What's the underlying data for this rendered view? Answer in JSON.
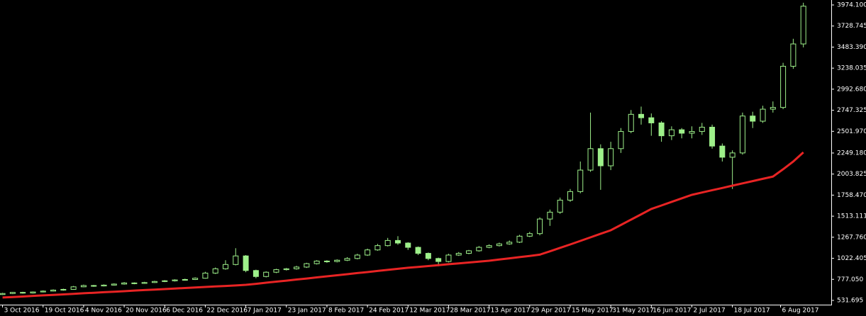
{
  "chart_data": {
    "type": "candlestick",
    "x": [
      "3 Oct 2016",
      "7 Oct 2016",
      "11 Oct 2016",
      "15 Oct 2016",
      "19 Oct 2016",
      "23 Oct 2016",
      "27 Oct 2016",
      "31 Oct 2016",
      "4 Nov 2016",
      "8 Nov 2016",
      "12 Nov 2016",
      "16 Nov 2016",
      "20 Nov 2016",
      "24 Nov 2016",
      "28 Nov 2016",
      "2 Dec 2016",
      "6 Dec 2016",
      "10 Dec 2016",
      "14 Dec 2016",
      "18 Dec 2016",
      "22 Dec 2016",
      "26 Dec 2016",
      "30 Dec 2016",
      "3 Jan 2017",
      "7 Jan 2017",
      "11 Jan 2017",
      "15 Jan 2017",
      "19 Jan 2017",
      "23 Jan 2017",
      "27 Jan 2017",
      "31 Jan 2017",
      "4 Feb 2017",
      "8 Feb 2017",
      "12 Feb 2017",
      "16 Feb 2017",
      "20 Feb 2017",
      "24 Feb 2017",
      "28 Feb 2017",
      "4 Mar 2017",
      "8 Mar 2017",
      "12 Mar 2017",
      "16 Mar 2017",
      "20 Mar 2017",
      "24 Mar 2017",
      "28 Mar 2017",
      "1 Apr 2017",
      "5 Apr 2017",
      "9 Apr 2017",
      "13 Apr 2017",
      "17 Apr 2017",
      "21 Apr 2017",
      "25 Apr 2017",
      "29 Apr 2017",
      "3 May 2017",
      "7 May 2017",
      "11 May 2017",
      "15 May 2017",
      "19 May 2017",
      "23 May 2017",
      "27 May 2017",
      "31 May 2017",
      "4 Jun 2017",
      "8 Jun 2017",
      "12 Jun 2017",
      "16 Jun 2017",
      "20 Jun 2017",
      "24 Jun 2017",
      "28 Jun 2017",
      "2 Jul 2017",
      "6 Jul 2017",
      "10 Jul 2017",
      "14 Jul 2017",
      "18 Jul 2017",
      "22 Jul 2017",
      "26 Jul 2017",
      "30 Jul 2017",
      "3 Aug 2017",
      "7 Aug 2017",
      "11 Aug 2017",
      "15 Aug 2017"
    ],
    "open": [
      600,
      612,
      625,
      618,
      630,
      640,
      652,
      660,
      690,
      705,
      700,
      710,
      722,
      735,
      730,
      740,
      752,
      760,
      770,
      775,
      790,
      850,
      900,
      950,
      1050,
      880,
      810,
      860,
      890,
      900,
      920,
      960,
      990,
      985,
      1000,
      1020,
      1060,
      1120,
      1170,
      1230,
      1200,
      1150,
      1080,
      1020,
      985,
      1060,
      1080,
      1110,
      1150,
      1170,
      1190,
      1210,
      1280,
      1310,
      1480,
      1560,
      1700,
      1800,
      2050,
      2300,
      2100,
      2300,
      2500,
      2700,
      2660,
      2600,
      2450,
      2520,
      2480,
      2500,
      2550,
      2330,
      2200,
      2250,
      2680,
      2620,
      2760,
      2780,
      3260,
      3520
    ],
    "high": [
      620,
      630,
      632,
      636,
      648,
      660,
      668,
      700,
      715,
      712,
      718,
      730,
      745,
      742,
      748,
      760,
      768,
      778,
      785,
      800,
      865,
      915,
      1000,
      1140,
      1060,
      890,
      870,
      900,
      910,
      935,
      970,
      1000,
      1000,
      1010,
      1035,
      1075,
      1135,
      1190,
      1260,
      1280,
      1210,
      1160,
      1090,
      1030,
      1075,
      1095,
      1120,
      1165,
      1185,
      1205,
      1230,
      1295,
      1330,
      1500,
      1590,
      1730,
      1830,
      2150,
      2720,
      2350,
      2380,
      2540,
      2750,
      2790,
      2710,
      2620,
      2560,
      2540,
      2560,
      2600,
      2580,
      2360,
      2280,
      2720,
      2730,
      2800,
      2850,
      3300,
      3580,
      4000
    ],
    "low": [
      595,
      605,
      610,
      612,
      625,
      635,
      645,
      655,
      685,
      690,
      695,
      705,
      715,
      720,
      725,
      735,
      745,
      752,
      762,
      770,
      785,
      840,
      890,
      940,
      860,
      790,
      800,
      850,
      880,
      890,
      910,
      950,
      970,
      975,
      990,
      1010,
      1050,
      1110,
      1160,
      1180,
      1120,
      1060,
      1000,
      930,
      975,
      1050,
      1070,
      1100,
      1140,
      1160,
      1180,
      1200,
      1270,
      1290,
      1400,
      1540,
      1680,
      1780,
      2030,
      1820,
      2050,
      2250,
      2480,
      2580,
      2450,
      2380,
      2400,
      2420,
      2420,
      2460,
      2300,
      2150,
      1830,
      2230,
      2540,
      2600,
      2720,
      2760,
      3230,
      3480
    ],
    "close": [
      612,
      625,
      618,
      630,
      640,
      652,
      660,
      690,
      705,
      700,
      710,
      722,
      735,
      730,
      740,
      752,
      760,
      770,
      775,
      790,
      850,
      900,
      950,
      1050,
      880,
      810,
      860,
      890,
      900,
      920,
      960,
      990,
      985,
      1000,
      1020,
      1060,
      1120,
      1170,
      1230,
      1200,
      1150,
      1080,
      1020,
      985,
      1060,
      1080,
      1110,
      1150,
      1170,
      1190,
      1210,
      1280,
      1310,
      1480,
      1560,
      1700,
      1800,
      2050,
      2300,
      2100,
      2300,
      2500,
      2700,
      2660,
      2600,
      2450,
      2520,
      2480,
      2500,
      2550,
      2330,
      2200,
      2250,
      2680,
      2620,
      2760,
      2780,
      3260,
      3520,
      3960
    ],
    "candle_color": "#9ef08a",
    "ma": {
      "color": "#e82424",
      "values": [
        565,
        571,
        577,
        584,
        590,
        596,
        602,
        608,
        615,
        621,
        627,
        633,
        639,
        646,
        652,
        658,
        664,
        670,
        676,
        682,
        688,
        694,
        700,
        706,
        713,
        725,
        738,
        750,
        762,
        775,
        787,
        800,
        812,
        825,
        837,
        850,
        862,
        875,
        887,
        900,
        912,
        922,
        932,
        943,
        953,
        963,
        973,
        984,
        994,
        1008,
        1022,
        1036,
        1050,
        1065,
        1104,
        1144,
        1184,
        1225,
        1266,
        1308,
        1349,
        1411,
        1473,
        1535,
        1597,
        1638,
        1680,
        1721,
        1762,
        1789,
        1816,
        1842,
        1869,
        1895,
        1922,
        1948,
        1975,
        2060,
        2150,
        2257
      ]
    },
    "xlim": [
      "2 Oct 2016",
      "26 Aug 2017"
    ],
    "xticks": [
      "3 Oct 2016",
      "19 Oct 2016",
      "4 Nov 2016",
      "20 Nov 2016",
      "6 Dec 2016",
      "22 Dec 2016",
      "7 Jan 2017",
      "23 Jan 2017",
      "8 Feb 2017",
      "24 Feb 2017",
      "12 Mar 2017",
      "28 Mar 2017",
      "13 Apr 2017",
      "29 Apr 2017",
      "15 May 2017",
      "31 May 2017",
      "16 Jun 2017",
      "2 Jul 2017",
      "18 Jul 2017",
      "6 Aug 2017"
    ],
    "ylim": [
      482,
      4032
    ],
    "yticks": [
      {
        "value": 531.695,
        "label": "531.695"
      },
      {
        "value": 777.05,
        "label": "777.050"
      },
      {
        "value": 1022.405,
        "label": "1022.405"
      },
      {
        "value": 1267.76,
        "label": "1267.760"
      },
      {
        "value": 1513.111,
        "label": "1513.111"
      },
      {
        "value": 1758.47,
        "label": "1758.470"
      },
      {
        "value": 2003.825,
        "label": "2003.825"
      },
      {
        "value": 2249.18,
        "label": "2249.180"
      },
      {
        "value": 2501.97,
        "label": "2501.970"
      },
      {
        "value": 2747.325,
        "label": "2747.325"
      },
      {
        "value": 2992.68,
        "label": "2992.680"
      },
      {
        "value": 3238.035,
        "label": "3238.035"
      },
      {
        "value": 3483.39,
        "label": "3483.390"
      },
      {
        "value": 3728.745,
        "label": "3728.745"
      },
      {
        "value": 3974.1,
        "label": "3974.100"
      }
    ]
  }
}
